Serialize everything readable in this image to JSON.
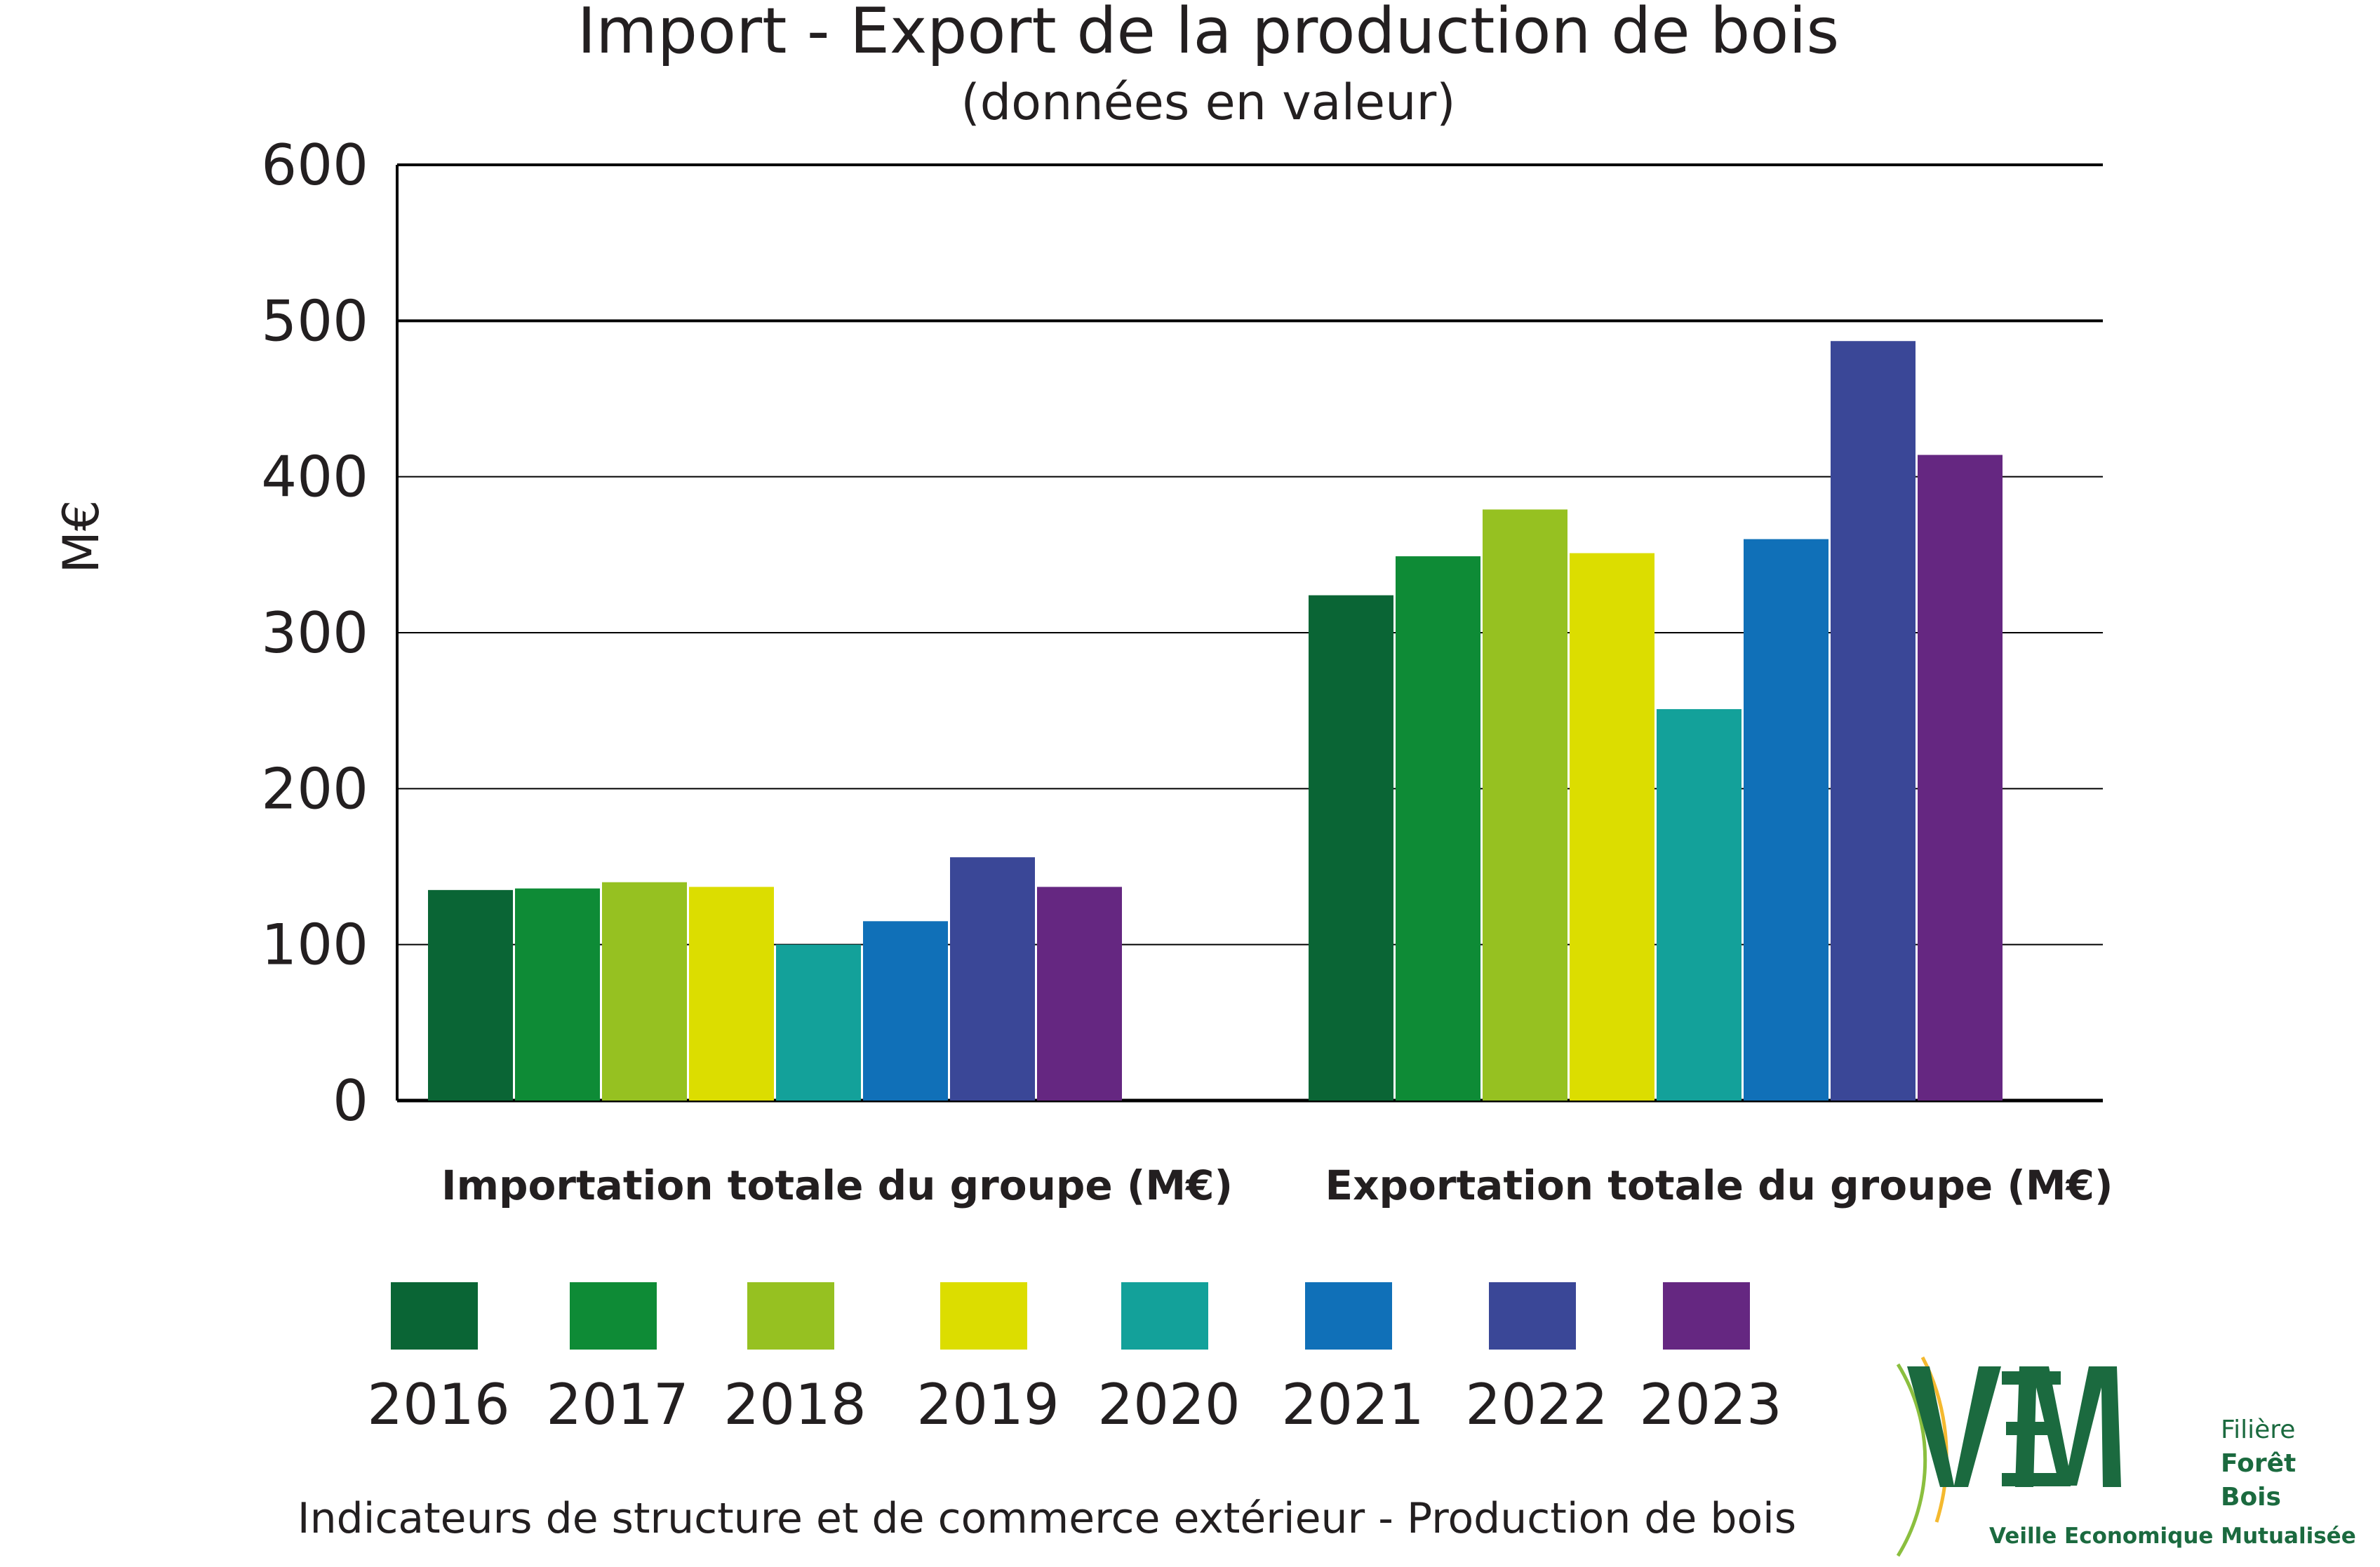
{
  "chart_data": {
    "type": "bar",
    "title": "Import - Export de la production de bois",
    "subtitle": "(données en valeur)",
    "ylabel": "M€",
    "xlabel": "",
    "ylim": [
      0,
      600
    ],
    "yticks": [
      "0",
      "100",
      "200",
      "300",
      "400",
      "500",
      "600"
    ],
    "grid": true,
    "legend_position": "bottom",
    "categories": [
      "Importation totale du groupe (M€)",
      "Exportation totale du groupe (M€)"
    ],
    "series": [
      {
        "name": "2016",
        "color": "#0a6535",
        "values": [
          135,
          324
        ]
      },
      {
        "name": "2017",
        "color": "#0e8b36",
        "values": [
          136,
          349
        ]
      },
      {
        "name": "2018",
        "color": "#96c121",
        "values": [
          140,
          379
        ]
      },
      {
        "name": "2019",
        "color": "#dcdd00",
        "values": [
          137,
          351
        ]
      },
      {
        "name": "2020",
        "color": "#13a19a",
        "values": [
          100,
          251
        ]
      },
      {
        "name": "2021",
        "color": "#1070b8",
        "values": [
          115,
          360
        ]
      },
      {
        "name": "2022",
        "color": "#3a4797",
        "values": [
          156,
          487
        ]
      },
      {
        "name": "2023",
        "color": "#652781",
        "values": [
          137,
          414
        ]
      }
    ],
    "footer": "Indicateurs de structure et de commerce extérieur - Production de bois"
  },
  "logo": {
    "letters": "VEM",
    "line1": "Filière",
    "line2": "Forêt",
    "line3": "Bois",
    "tagline": "Veille Economique Mutualisée",
    "color": "#1b6a3f"
  }
}
